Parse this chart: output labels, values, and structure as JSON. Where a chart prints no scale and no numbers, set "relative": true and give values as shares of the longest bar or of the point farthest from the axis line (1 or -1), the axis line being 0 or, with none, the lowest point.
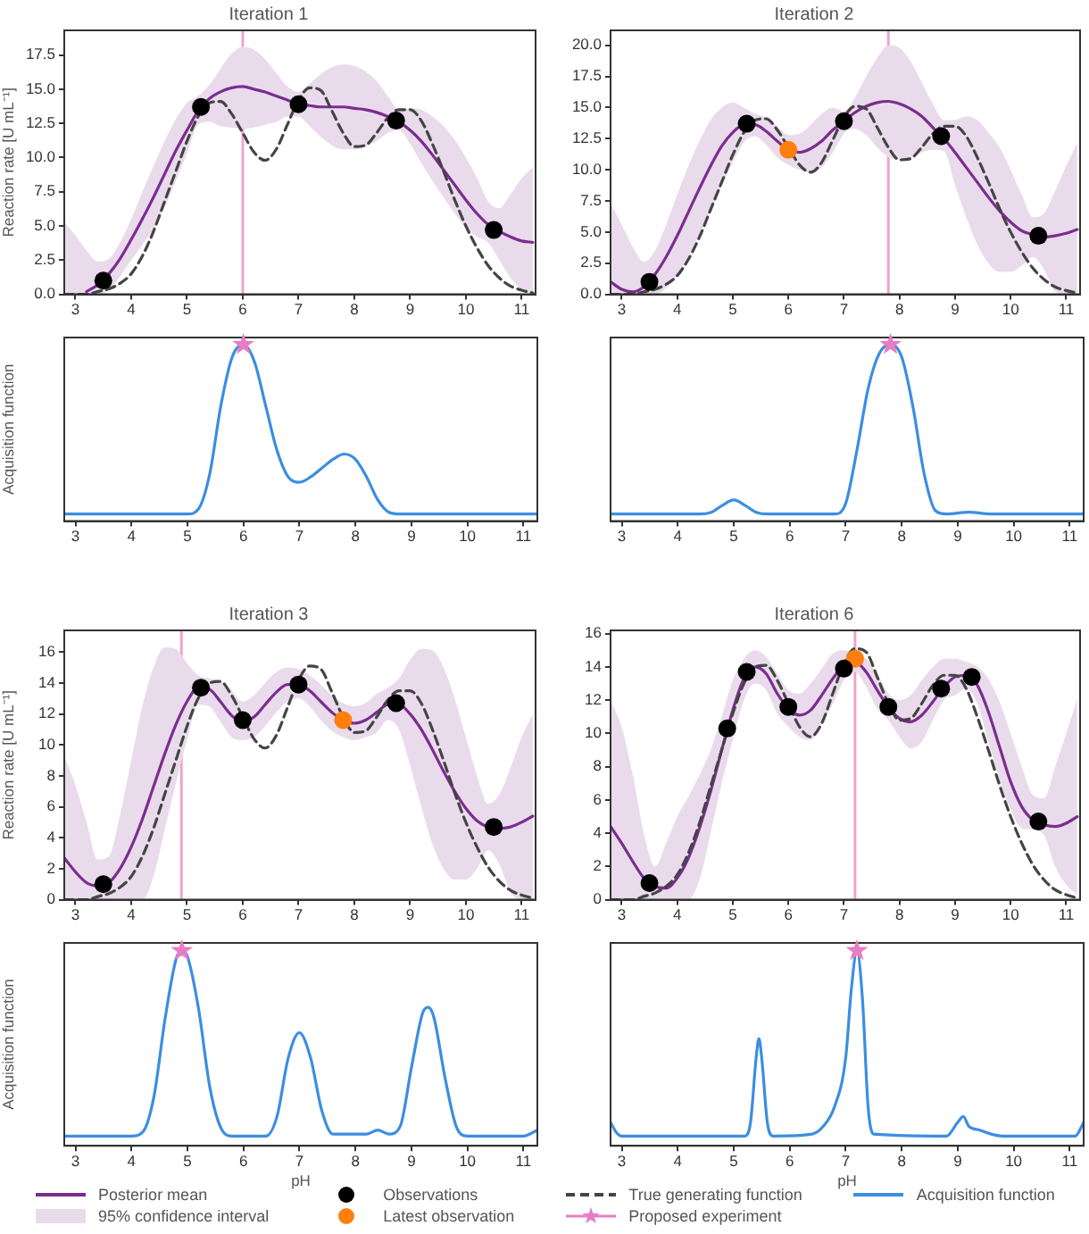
{
  "chart_data": [
    {
      "type": "line",
      "title": "Iteration 1",
      "ylabel": "Reaction rate [U mL⁻¹]",
      "xlim": [
        2.8,
        11.25
      ],
      "xticks": [
        3,
        4,
        5,
        6,
        7,
        8,
        9,
        10,
        11
      ],
      "ylim": [
        0,
        19.3
      ],
      "yticks": [
        {
          "value": 0,
          "label": "0.0"
        },
        {
          "value": 2.5,
          "label": "2.5"
        },
        {
          "value": 5,
          "label": "5.0"
        },
        {
          "value": 7.5,
          "label": "7.5"
        },
        {
          "value": 10,
          "label": "10.0"
        },
        {
          "value": 12.5,
          "label": "12.5"
        },
        {
          "value": 15,
          "label": "15.0"
        },
        {
          "value": 17.5,
          "label": "17.5"
        }
      ],
      "ref_lines": [
        {
          "axis": "x",
          "value": 6,
          "color": "#f0a3cf"
        }
      ],
      "x": [
        2.8,
        3.0,
        3.2,
        3.4,
        3.6,
        3.8,
        4.0,
        4.2,
        4.4,
        4.6,
        4.8,
        5.0,
        5.2,
        5.4,
        5.6,
        5.8,
        6.0,
        6.2,
        6.4,
        6.6,
        6.8,
        7.0,
        7.2,
        7.4,
        7.6,
        7.8,
        8.0,
        8.2,
        8.4,
        8.6,
        8.8,
        9.0,
        9.2,
        9.4,
        9.6,
        9.8,
        10.0,
        10.2,
        10.4,
        10.6,
        10.8,
        11.0,
        11.2
      ],
      "series": [
        {
          "color": "#7b2d8e",
          "values": [
            null,
            null,
            0.2,
            0.7,
            1.5,
            2.6,
            4.0,
            5.5,
            7.1,
            8.8,
            10.5,
            12.0,
            13.4,
            14.3,
            14.8,
            15.1,
            15.2,
            15.0,
            14.8,
            14.5,
            14.2,
            13.9,
            13.8,
            13.7,
            13.7,
            13.7,
            13.6,
            13.5,
            13.3,
            13.0,
            12.6,
            12.0,
            11.2,
            10.2,
            9.1,
            8.0,
            6.9,
            5.9,
            5.1,
            4.6,
            4.2,
            3.9,
            3.8
          ],
          "lower": [
            0,
            0,
            0,
            0,
            0.3,
            1.3,
            2.5,
            3.6,
            4.8,
            6.4,
            8.3,
            10.3,
            12.4,
            12.6,
            12.3,
            12.2,
            12.1,
            12.2,
            12.4,
            12.6,
            13.0,
            13.0,
            12.3,
            11.5,
            10.9,
            10.6,
            10.6,
            10.8,
            11.2,
            11.8,
            12.0,
            11.0,
            9.6,
            8.3,
            7.1,
            5.9,
            4.9,
            4.2,
            3.8,
            2.5,
            1.2,
            0.3,
            0
          ],
          "upper": [
            5.3,
            4.3,
            3.2,
            2.4,
            2.6,
            3.8,
            5.5,
            7.5,
            9.4,
            11.2,
            12.8,
            14.0,
            14.5,
            15.3,
            16.5,
            17.6,
            18.1,
            17.9,
            17.2,
            16.2,
            15.2,
            14.8,
            15.4,
            16.1,
            16.6,
            16.8,
            16.7,
            16.3,
            15.6,
            14.5,
            13.5,
            13.6,
            13.5,
            13.0,
            12.3,
            11.3,
            10.0,
            8.5,
            6.8,
            6.3,
            7.3,
            8.5,
            9.3
          ]
        },
        {
          "type": "scatter",
          "color": "#000000",
          "marker": "circle",
          "x": [
            3.5,
            5.25,
            7.0,
            8.75,
            10.5
          ],
          "values": [
            1.0,
            13.7,
            13.9,
            12.7,
            4.7
          ]
        },
        {
          "color": "#444444",
          "line_style": "dashed",
          "values": [
            0,
            0,
            0,
            0.2,
            0.4,
            0.8,
            1.5,
            2.8,
            4.6,
            6.8,
            9.0,
            11.2,
            13.0,
            14.0,
            14.1,
            13.2,
            11.8,
            10.4,
            9.8,
            10.6,
            12.4,
            14.2,
            15.1,
            14.9,
            13.4,
            11.8,
            10.8,
            10.9,
            11.8,
            12.9,
            13.5,
            13.5,
            12.7,
            11.0,
            9.0,
            6.9,
            5.0,
            3.4,
            2.1,
            1.2,
            0.6,
            0.3,
            0.1
          ]
        }
      ]
    },
    {
      "type": "line",
      "title": "Iteration 2",
      "xlim": [
        2.8,
        11.25
      ],
      "xticks": [
        3,
        4,
        5,
        6,
        7,
        8,
        9,
        10,
        11
      ],
      "ylim": [
        0,
        21.2
      ],
      "yticks": [
        {
          "value": 0,
          "label": "0.0"
        },
        {
          "value": 2.5,
          "label": "2.5"
        },
        {
          "value": 5,
          "label": "5.0"
        },
        {
          "value": 7.5,
          "label": "7.5"
        },
        {
          "value": 10,
          "label": "10.0"
        },
        {
          "value": 12.5,
          "label": "12.5"
        },
        {
          "value": 15,
          "label": "15.0"
        },
        {
          "value": 17.5,
          "label": "17.5"
        },
        {
          "value": 20,
          "label": "20.0"
        }
      ],
      "ref_lines": [
        {
          "axis": "x",
          "value": 7.8,
          "color": "#f0a3cf"
        }
      ],
      "x": [
        2.8,
        3.0,
        3.2,
        3.4,
        3.6,
        3.8,
        4.0,
        4.2,
        4.4,
        4.6,
        4.8,
        5.0,
        5.2,
        5.4,
        5.6,
        5.8,
        6.0,
        6.2,
        6.4,
        6.6,
        6.8,
        7.0,
        7.2,
        7.4,
        7.6,
        7.8,
        8.0,
        8.2,
        8.4,
        8.6,
        8.8,
        9.0,
        9.2,
        9.4,
        9.6,
        9.8,
        10.0,
        10.2,
        10.4,
        10.6,
        10.8,
        11.0,
        11.2
      ],
      "series": [
        {
          "color": "#7b2d8e",
          "values": [
            1.0,
            0.4,
            0.2,
            0.6,
            1.6,
            3.0,
            4.7,
            6.6,
            8.5,
            10.3,
            11.9,
            13.0,
            13.6,
            13.6,
            13.1,
            12.3,
            11.6,
            11.4,
            11.7,
            12.3,
            13.2,
            13.9,
            14.6,
            15.1,
            15.4,
            15.5,
            15.3,
            14.9,
            14.3,
            13.4,
            12.5,
            11.4,
            10.2,
            9.0,
            7.8,
            6.7,
            5.8,
            5.1,
            4.8,
            4.6,
            4.7,
            4.9,
            5.2
          ],
          "lower": [
            0,
            0,
            0,
            0,
            0,
            0.5,
            1.5,
            3.0,
            4.8,
            6.7,
            8.7,
            10.6,
            12.2,
            12.7,
            12.0,
            11.0,
            10.4,
            10.0,
            9.8,
            10.2,
            11.4,
            12.9,
            13.3,
            12.8,
            11.8,
            11.0,
            10.8,
            11.0,
            11.4,
            11.6,
            11.5,
            8.8,
            6.2,
            4.0,
            2.5,
            1.8,
            1.8,
            2.3,
            3.0,
            2.0,
            0.2,
            0,
            0
          ],
          "upper": [
            7.3,
            5.6,
            3.8,
            2.6,
            3.5,
            5.6,
            8.0,
            10.3,
            12.3,
            14.0,
            15.0,
            15.4,
            15.0,
            14.5,
            14.2,
            13.5,
            12.8,
            12.9,
            13.6,
            14.5,
            15.0,
            14.7,
            15.8,
            17.5,
            19.0,
            20.0,
            19.8,
            18.7,
            17.0,
            15.3,
            14.0,
            14.0,
            14.3,
            14.0,
            13.0,
            11.8,
            10.0,
            8.0,
            6.2,
            6.5,
            8.3,
            10.3,
            12.2
          ]
        },
        {
          "type": "scatter",
          "color": "#000000",
          "marker": "circle",
          "x": [
            3.5,
            5.25,
            7.0,
            8.75,
            10.5
          ],
          "values": [
            1.0,
            13.7,
            13.9,
            12.7,
            4.7
          ]
        },
        {
          "type": "scatter",
          "color": "#ff7f0e",
          "marker": "circle",
          "x": [
            6.0
          ],
          "values": [
            11.6
          ]
        },
        {
          "color": "#444444",
          "line_style": "dashed",
          "values": [
            0,
            0,
            0,
            0.2,
            0.4,
            0.8,
            1.5,
            2.8,
            4.6,
            6.8,
            9.0,
            11.2,
            13.0,
            14.0,
            14.1,
            13.2,
            11.8,
            10.4,
            9.8,
            10.6,
            12.4,
            14.2,
            15.1,
            14.9,
            13.4,
            11.8,
            10.8,
            10.9,
            11.8,
            12.9,
            13.5,
            13.5,
            12.7,
            11.0,
            9.0,
            6.9,
            5.0,
            3.4,
            2.1,
            1.2,
            0.6,
            0.3,
            0.1
          ]
        }
      ]
    },
    {
      "type": "line",
      "ylabel": "Acquisition function",
      "relative": true,
      "xlim": [
        2.8,
        11.25
      ],
      "xticks": [
        3,
        4,
        5,
        6,
        7,
        8,
        9,
        10,
        11
      ],
      "series": [
        {
          "color": "#3b8ee0",
          "x": [
            2.8,
            5.0,
            5.2,
            5.4,
            5.6,
            5.8,
            6.0,
            6.2,
            6.4,
            6.6,
            6.8,
            7.0,
            7.2,
            7.4,
            7.6,
            7.8,
            8.0,
            8.2,
            8.4,
            8.6,
            8.8,
            11.25
          ],
          "values": [
            0.04,
            0.04,
            0.07,
            0.27,
            0.66,
            0.93,
            1.0,
            0.9,
            0.65,
            0.4,
            0.25,
            0.22,
            0.25,
            0.3,
            0.35,
            0.38,
            0.35,
            0.25,
            0.12,
            0.05,
            0.04,
            0.04
          ]
        },
        {
          "type": "scatter",
          "color": "#e87dc4",
          "marker": "star",
          "x": [
            6.0
          ],
          "values": [
            1.0
          ]
        }
      ]
    },
    {
      "type": "line",
      "relative": true,
      "xlim": [
        2.8,
        11.25
      ],
      "xticks": [
        3,
        4,
        5,
        6,
        7,
        8,
        9,
        10,
        11
      ],
      "series": [
        {
          "color": "#3b8ee0",
          "x": [
            2.8,
            4.4,
            4.6,
            4.8,
            5.0,
            5.2,
            5.4,
            5.6,
            6.8,
            7.0,
            7.2,
            7.4,
            7.6,
            7.8,
            8.0,
            8.2,
            8.4,
            8.6,
            8.8,
            9.2,
            9.6,
            11.25
          ],
          "values": [
            0.04,
            0.04,
            0.05,
            0.09,
            0.12,
            0.09,
            0.05,
            0.04,
            0.04,
            0.1,
            0.4,
            0.75,
            0.95,
            1.0,
            0.93,
            0.65,
            0.27,
            0.06,
            0.04,
            0.05,
            0.04,
            0.04
          ]
        },
        {
          "type": "scatter",
          "color": "#e87dc4",
          "marker": "star",
          "x": [
            7.8
          ],
          "values": [
            1.0
          ]
        }
      ]
    },
    {
      "type": "line",
      "title": "Iteration 3",
      "ylabel": "Reaction rate [U mL⁻¹]",
      "xlim": [
        2.8,
        11.25
      ],
      "xticks": [
        3,
        4,
        5,
        6,
        7,
        8,
        9,
        10,
        11
      ],
      "ylim": [
        0,
        17.4
      ],
      "yticks": [
        0,
        2,
        4,
        6,
        8,
        10,
        12,
        14,
        16
      ],
      "ref_lines": [
        {
          "axis": "x",
          "value": 4.9,
          "color": "#f0a3cf"
        }
      ],
      "x": [
        2.8,
        3.0,
        3.2,
        3.4,
        3.6,
        3.8,
        4.0,
        4.2,
        4.4,
        4.6,
        4.8,
        5.0,
        5.2,
        5.4,
        5.6,
        5.8,
        6.0,
        6.2,
        6.4,
        6.6,
        6.8,
        7.0,
        7.2,
        7.4,
        7.6,
        7.8,
        8.0,
        8.2,
        8.4,
        8.6,
        8.8,
        9.0,
        9.2,
        9.4,
        9.6,
        9.8,
        10.0,
        10.2,
        10.4,
        10.6,
        10.8,
        11.0,
        11.2
      ],
      "series": [
        {
          "color": "#7b2d8e",
          "values": [
            2.7,
            1.8,
            1.1,
            0.9,
            1.1,
            2.0,
            3.4,
            5.2,
            7.3,
            9.4,
            11.3,
            12.8,
            13.7,
            13.6,
            12.8,
            11.9,
            11.5,
            11.8,
            12.6,
            13.4,
            13.9,
            13.9,
            13.5,
            12.8,
            12.1,
            11.6,
            11.4,
            11.6,
            12.1,
            12.6,
            12.6,
            12.0,
            11.0,
            9.7,
            8.3,
            7.0,
            5.9,
            5.1,
            4.7,
            4.6,
            4.7,
            5.0,
            5.4
          ],
          "lower": [
            0,
            0,
            0,
            0,
            0,
            0,
            0,
            0,
            1.5,
            4.5,
            7.5,
            10.3,
            12.6,
            12.5,
            11.5,
            10.5,
            10.3,
            10.5,
            11.2,
            12.1,
            12.8,
            13.0,
            12.5,
            11.6,
            10.9,
            10.5,
            10.3,
            10.5,
            10.8,
            11.6,
            11.0,
            8.7,
            6.0,
            3.6,
            2.0,
            1.3,
            1.3,
            2.0,
            3.2,
            2.3,
            0.5,
            0,
            0
          ],
          "upper": [
            9.3,
            7.4,
            5.0,
            2.6,
            2.8,
            5.5,
            9.0,
            12.5,
            15.0,
            16.3,
            16.2,
            15.3,
            14.5,
            14.3,
            14.1,
            13.5,
            12.8,
            13.2,
            14.0,
            14.7,
            15.0,
            14.9,
            14.5,
            13.9,
            13.2,
            12.7,
            12.5,
            12.7,
            13.3,
            13.7,
            14.3,
            15.5,
            16.2,
            16.1,
            15.0,
            13.0,
            10.5,
            8.0,
            6.2,
            6.8,
            8.5,
            10.5,
            12.0
          ]
        },
        {
          "type": "scatter",
          "color": "#000000",
          "marker": "circle",
          "x": [
            3.5,
            5.25,
            6.0,
            7.0,
            8.75,
            10.5
          ],
          "values": [
            1.0,
            13.7,
            11.6,
            13.9,
            12.7,
            4.7
          ]
        },
        {
          "type": "scatter",
          "color": "#ff7f0e",
          "marker": "circle",
          "x": [
            7.8
          ],
          "values": [
            11.6
          ]
        },
        {
          "color": "#444444",
          "line_style": "dashed",
          "values": [
            0,
            0,
            0,
            0.2,
            0.4,
            0.8,
            1.5,
            2.8,
            4.6,
            6.8,
            9.0,
            11.2,
            13.0,
            14.0,
            14.1,
            13.2,
            11.8,
            10.4,
            9.8,
            10.6,
            12.4,
            14.2,
            15.1,
            14.9,
            13.4,
            11.8,
            10.8,
            10.9,
            11.8,
            12.9,
            13.5,
            13.5,
            12.7,
            11.0,
            9.0,
            6.9,
            5.0,
            3.4,
            2.1,
            1.2,
            0.6,
            0.3,
            0.1
          ]
        }
      ]
    },
    {
      "type": "line",
      "title": "Iteration 6",
      "xlim": [
        2.8,
        11.25
      ],
      "xticks": [
        3,
        4,
        5,
        6,
        7,
        8,
        9,
        10,
        11
      ],
      "ylim": [
        0,
        16.2
      ],
      "yticks": [
        0,
        2,
        4,
        6,
        8,
        10,
        12,
        14,
        16
      ],
      "legend": "bottom",
      "annotations": [
        "95% confidence interval"
      ],
      "ref_lines": [
        {
          "axis": "x",
          "value": 7.2,
          "color": "#f0a3cf"
        }
      ],
      "x": [
        2.8,
        3.0,
        3.2,
        3.4,
        3.6,
        3.8,
        4.0,
        4.2,
        4.4,
        4.6,
        4.8,
        5.0,
        5.2,
        5.4,
        5.6,
        5.8,
        6.0,
        6.2,
        6.4,
        6.6,
        6.8,
        7.0,
        7.2,
        7.4,
        7.6,
        7.8,
        8.0,
        8.2,
        8.4,
        8.6,
        8.8,
        9.0,
        9.2,
        9.4,
        9.6,
        9.8,
        10.0,
        10.2,
        10.4,
        10.6,
        10.8,
        11.0,
        11.2
      ],
      "series": [
        {
          "name": "Posterior mean",
          "color": "#7b2d8e",
          "values": [
            4.4,
            3.4,
            2.3,
            1.3,
            0.8,
            0.7,
            1.3,
            2.5,
            4.3,
            6.5,
            9.0,
            11.4,
            13.3,
            14.0,
            13.6,
            12.4,
            11.5,
            11.1,
            11.4,
            12.3,
            13.3,
            14.1,
            14.3,
            13.7,
            12.6,
            11.6,
            10.9,
            10.7,
            11.1,
            11.9,
            12.8,
            13.4,
            13.5,
            12.9,
            11.3,
            9.2,
            7.1,
            5.6,
            4.8,
            4.5,
            4.4,
            4.6,
            5.0
          ],
          "lower": [
            0,
            0,
            0,
            0,
            0,
            0,
            0,
            0,
            1.2,
            4.0,
            7.0,
            9.6,
            12.0,
            13.0,
            12.6,
            11.2,
            10.4,
            9.8,
            9.6,
            10.6,
            11.8,
            13.2,
            13.7,
            12.8,
            11.5,
            10.8,
            9.8,
            9.1,
            9.5,
            10.8,
            12.0,
            12.3,
            12.7,
            11.8,
            9.5,
            7.2,
            5.4,
            4.3,
            4.2,
            3.9,
            2.0,
            0.9,
            0.3
          ],
          "upper": [
            12.0,
            10.4,
            7.5,
            4.0,
            2.0,
            3.4,
            5.0,
            6.2,
            7.5,
            9.0,
            11.0,
            13.2,
            14.5,
            15.0,
            14.6,
            13.6,
            12.6,
            12.4,
            13.0,
            13.9,
            14.8,
            15.0,
            14.8,
            14.5,
            13.6,
            12.4,
            12.0,
            12.3,
            13.2,
            14.0,
            14.5,
            14.5,
            14.3,
            14.0,
            13.3,
            11.9,
            10.0,
            8.0,
            6.3,
            6.1,
            8.0,
            10.0,
            12.1
          ]
        },
        {
          "type": "scatter",
          "name": "Observations",
          "color": "#000000",
          "marker": "circle",
          "x": [
            3.5,
            4.9,
            5.25,
            6.0,
            7.0,
            7.8,
            8.75,
            9.3,
            10.5
          ],
          "values": [
            1.0,
            10.3,
            13.7,
            11.6,
            13.9,
            11.6,
            12.7,
            13.4,
            4.7
          ]
        },
        {
          "type": "scatter",
          "name": "Latest observation",
          "color": "#ff7f0e",
          "marker": "circle",
          "x": [
            7.2
          ],
          "values": [
            14.5
          ]
        },
        {
          "name": "True generating function",
          "color": "#444444",
          "line_style": "dashed",
          "values": [
            0,
            0,
            0,
            0.2,
            0.4,
            0.8,
            1.5,
            2.8,
            4.6,
            6.8,
            9.0,
            11.2,
            13.0,
            14.0,
            14.1,
            13.2,
            11.8,
            10.4,
            9.8,
            10.6,
            12.4,
            14.2,
            15.1,
            14.9,
            13.4,
            11.8,
            10.8,
            10.9,
            11.8,
            12.9,
            13.5,
            13.5,
            12.7,
            11.0,
            9.0,
            6.9,
            5.0,
            3.4,
            2.1,
            1.2,
            0.6,
            0.3,
            0.1
          ]
        }
      ]
    },
    {
      "type": "line",
      "ylabel": "Acquisition function",
      "xlabel": "pH",
      "relative": true,
      "xlim": [
        2.8,
        11.25
      ],
      "xticks": [
        3,
        4,
        5,
        6,
        7,
        8,
        9,
        10,
        11
      ],
      "series": [
        {
          "color": "#3b8ee0",
          "x": [
            2.8,
            4.0,
            4.2,
            4.4,
            4.6,
            4.8,
            4.9,
            5.0,
            5.2,
            5.4,
            5.6,
            5.8,
            6.4,
            6.6,
            6.8,
            7.0,
            7.2,
            7.4,
            7.6,
            8.2,
            8.4,
            8.6,
            8.8,
            9.0,
            9.2,
            9.3,
            9.4,
            9.6,
            9.8,
            10.0,
            11.0,
            11.25
          ],
          "values": [
            0.05,
            0.05,
            0.07,
            0.25,
            0.65,
            0.96,
            1.0,
            0.97,
            0.7,
            0.3,
            0.09,
            0.05,
            0.05,
            0.15,
            0.45,
            0.58,
            0.45,
            0.18,
            0.06,
            0.06,
            0.08,
            0.06,
            0.1,
            0.4,
            0.68,
            0.71,
            0.66,
            0.35,
            0.1,
            0.05,
            0.05,
            0.08
          ]
        },
        {
          "type": "scatter",
          "color": "#e87dc4",
          "marker": "star",
          "x": [
            4.9
          ],
          "values": [
            1.0
          ]
        }
      ]
    },
    {
      "type": "line",
      "xlabel": "pH",
      "relative": true,
      "xlim": [
        2.8,
        11.25
      ],
      "xticks": [
        3,
        4,
        5,
        6,
        7,
        8,
        9,
        10,
        11
      ],
      "legend": "bottom",
      "series": [
        {
          "type": "scatter",
          "name": "Proposed experiment",
          "color": "#e87dc4",
          "marker": "star",
          "x": [
            7.2
          ],
          "values": [
            1.0
          ]
        },
        {
          "name": "Acquisition function",
          "color": "#3b8ee0",
          "x": [
            2.8,
            2.9,
            3.0,
            5.2,
            5.3,
            5.4,
            5.45,
            5.5,
            5.6,
            5.7,
            6.4,
            6.6,
            6.8,
            7.0,
            7.1,
            7.2,
            7.3,
            7.4,
            7.5,
            8.8,
            9.0,
            9.1,
            9.2,
            9.4,
            9.6,
            9.8,
            11.1,
            11.25
          ],
          "values": [
            0.12,
            0.07,
            0.05,
            0.05,
            0.12,
            0.45,
            0.55,
            0.45,
            0.12,
            0.05,
            0.06,
            0.1,
            0.2,
            0.45,
            0.8,
            1.0,
            0.75,
            0.2,
            0.06,
            0.05,
            0.12,
            0.15,
            0.1,
            0.08,
            0.06,
            0.05,
            0.05,
            0.12
          ]
        }
      ]
    }
  ]
}
